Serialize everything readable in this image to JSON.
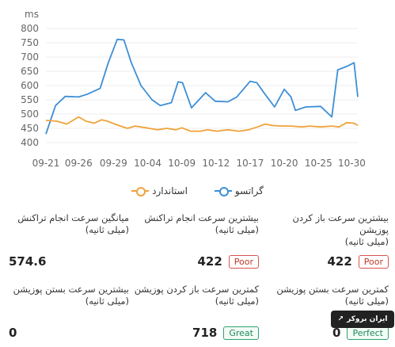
{
  "chart_data": {
    "type": "line",
    "unit": "ms",
    "ylim": [
      400,
      800
    ],
    "yticks": [
      400,
      450,
      500,
      550,
      600,
      650,
      700,
      750,
      800
    ],
    "xlim": [
      0,
      42
    ],
    "xtick_labels": [
      "09-21",
      "09-26",
      "09-29",
      "10-04",
      "10-09",
      "10-12",
      "10-17",
      "10-20",
      "10-25",
      "10-30"
    ],
    "xtick_positions": [
      0,
      4.4,
      9.1,
      13.7,
      18.3,
      22.9,
      27.5,
      32.1,
      36.7,
      41.2
    ],
    "grid": true,
    "legend_position": "bottom",
    "series": [
      {
        "name": "گراتسو",
        "color": "#3d8fd6",
        "points": [
          [
            0,
            430
          ],
          [
            1.3,
            530
          ],
          [
            2.6,
            562
          ],
          [
            4.4,
            560
          ],
          [
            5.6,
            570
          ],
          [
            7.3,
            590
          ],
          [
            8.4,
            680
          ],
          [
            9.6,
            762
          ],
          [
            10.5,
            760
          ],
          [
            11.5,
            680
          ],
          [
            12.8,
            600
          ],
          [
            14.3,
            550
          ],
          [
            15.4,
            530
          ],
          [
            16.9,
            540
          ],
          [
            17.8,
            613
          ],
          [
            18.4,
            610
          ],
          [
            19.6,
            522
          ],
          [
            20.5,
            547
          ],
          [
            21.5,
            575
          ],
          [
            22.8,
            545
          ],
          [
            24.5,
            543
          ],
          [
            25.7,
            560
          ],
          [
            27.5,
            615
          ],
          [
            28.4,
            610
          ],
          [
            29.5,
            570
          ],
          [
            30.8,
            525
          ],
          [
            32.1,
            587
          ],
          [
            33.0,
            560
          ],
          [
            33.6,
            513
          ],
          [
            35.0,
            525
          ],
          [
            37.0,
            527
          ],
          [
            38.5,
            490
          ],
          [
            39.3,
            655
          ],
          [
            40.5,
            667
          ],
          [
            41.5,
            680
          ],
          [
            42,
            560
          ]
        ]
      },
      {
        "name": "استاندارد",
        "color": "#f0a33a",
        "points": [
          [
            0,
            478
          ],
          [
            1.5,
            475
          ],
          [
            2.8,
            465
          ],
          [
            4.4,
            490
          ],
          [
            5.4,
            475
          ],
          [
            6.5,
            468
          ],
          [
            7.5,
            480
          ],
          [
            8.3,
            475
          ],
          [
            9.8,
            460
          ],
          [
            11,
            450
          ],
          [
            12,
            458
          ],
          [
            13.5,
            452
          ],
          [
            15.0,
            445
          ],
          [
            16.3,
            450
          ],
          [
            17.5,
            445
          ],
          [
            18.3,
            452
          ],
          [
            19.5,
            440
          ],
          [
            20.8,
            440
          ],
          [
            21.8,
            445
          ],
          [
            23.0,
            440
          ],
          [
            24.5,
            445
          ],
          [
            26.0,
            440
          ],
          [
            27.3,
            445
          ],
          [
            28.5,
            455
          ],
          [
            29.5,
            465
          ],
          [
            30.5,
            460
          ],
          [
            31.7,
            458
          ],
          [
            33.0,
            458
          ],
          [
            34.5,
            455
          ],
          [
            35.5,
            458
          ],
          [
            37.0,
            455
          ],
          [
            38.5,
            458
          ],
          [
            39.5,
            455
          ],
          [
            40.5,
            470
          ],
          [
            41.5,
            468
          ],
          [
            42,
            460
          ]
        ]
      }
    ]
  },
  "legend": {
    "series_1": "گراتسو",
    "series_2": "استاندارد"
  },
  "metrics": [
    {
      "label": "بیشترین سرعت باز کردن پوزیشن\n(میلی ثانیه)",
      "value": "422",
      "badge": "Poor",
      "badge_kind": "poor"
    },
    {
      "label": "بیشترین سرعت انجام تراکنش\n(میلی ثانیه)",
      "value": "422",
      "badge": "Poor",
      "badge_kind": "poor"
    },
    {
      "label": "میانگین سرعت انجام تراکنش\n(میلی ثانیه)",
      "value": "574.6",
      "badge": "",
      "badge_kind": ""
    },
    {
      "label": "کمترین سرعت بستن پوزیشن\n(میلی ثانیه)",
      "value": "0",
      "badge": "Perfect",
      "badge_kind": "good"
    },
    {
      "label": "کمترین سرعت باز کردن پوزیشن\n(میلی ثانیه)",
      "value": "718",
      "badge": "Great",
      "badge_kind": "good"
    },
    {
      "label": "بیشترین سرعت بستن پوزیشن\n(میلی ثانیه)",
      "value": "0",
      "badge": "",
      "badge_kind": ""
    }
  ],
  "brand": {
    "name": "ایران بروکر",
    "icon": "trend-arrow-icon"
  }
}
